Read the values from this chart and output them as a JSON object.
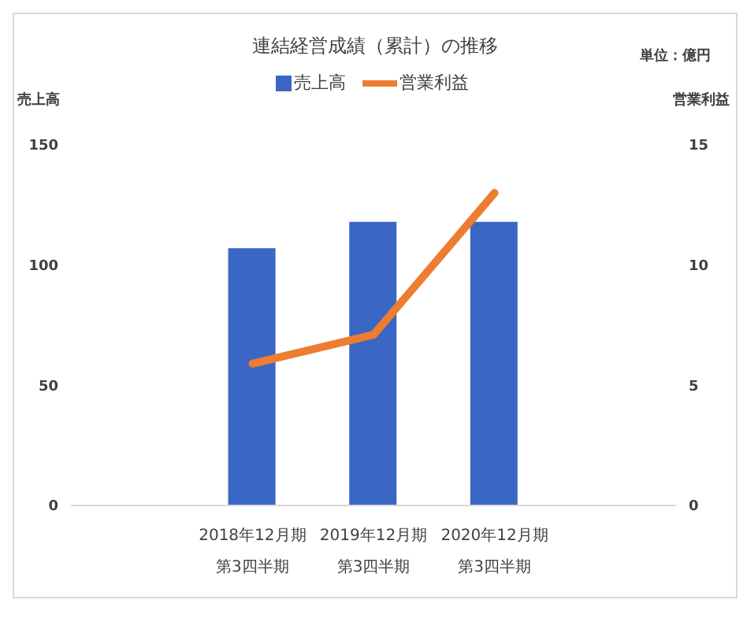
{
  "chart_data": {
    "type": "bar",
    "title": "連結経営成績（累計）の推移",
    "annotations": [
      "単位：億円"
    ],
    "ylabel": "売上高",
    "y2label": "営業利益",
    "categories": [
      null,
      "2018年12月期第3四半期",
      "2019年12月期第3四半期",
      "2020年12月期第3四半期",
      null
    ],
    "series": [
      {
        "name": "売上高",
        "color": "#3a66c4",
        "values": [
          null,
          107,
          118,
          118,
          null
        ]
      },
      {
        "name": "営業利益",
        "type": "line",
        "axis": "y2",
        "color": "#ed7d31",
        "values": [
          null,
          5.9,
          7.1,
          13.0,
          null
        ]
      }
    ],
    "ylim": [
      0,
      150
    ],
    "yticks": [
      0,
      50,
      100,
      150
    ],
    "y2lim": [
      0,
      15
    ],
    "y2ticks": [
      0,
      5,
      10,
      15
    ],
    "legend": "top",
    "grid": false,
    "marker": "none"
  }
}
